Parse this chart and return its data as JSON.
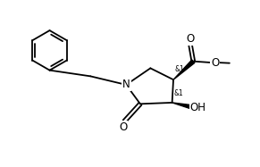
{
  "bg_color": "#ffffff",
  "line_color": "#000000",
  "bond_lw": 1.3,
  "font_size": 7.5,
  "figsize": [
    2.91,
    1.87
  ],
  "dpi": 100,
  "xlim": [
    0,
    10
  ],
  "ylim": [
    0,
    6.5
  ]
}
